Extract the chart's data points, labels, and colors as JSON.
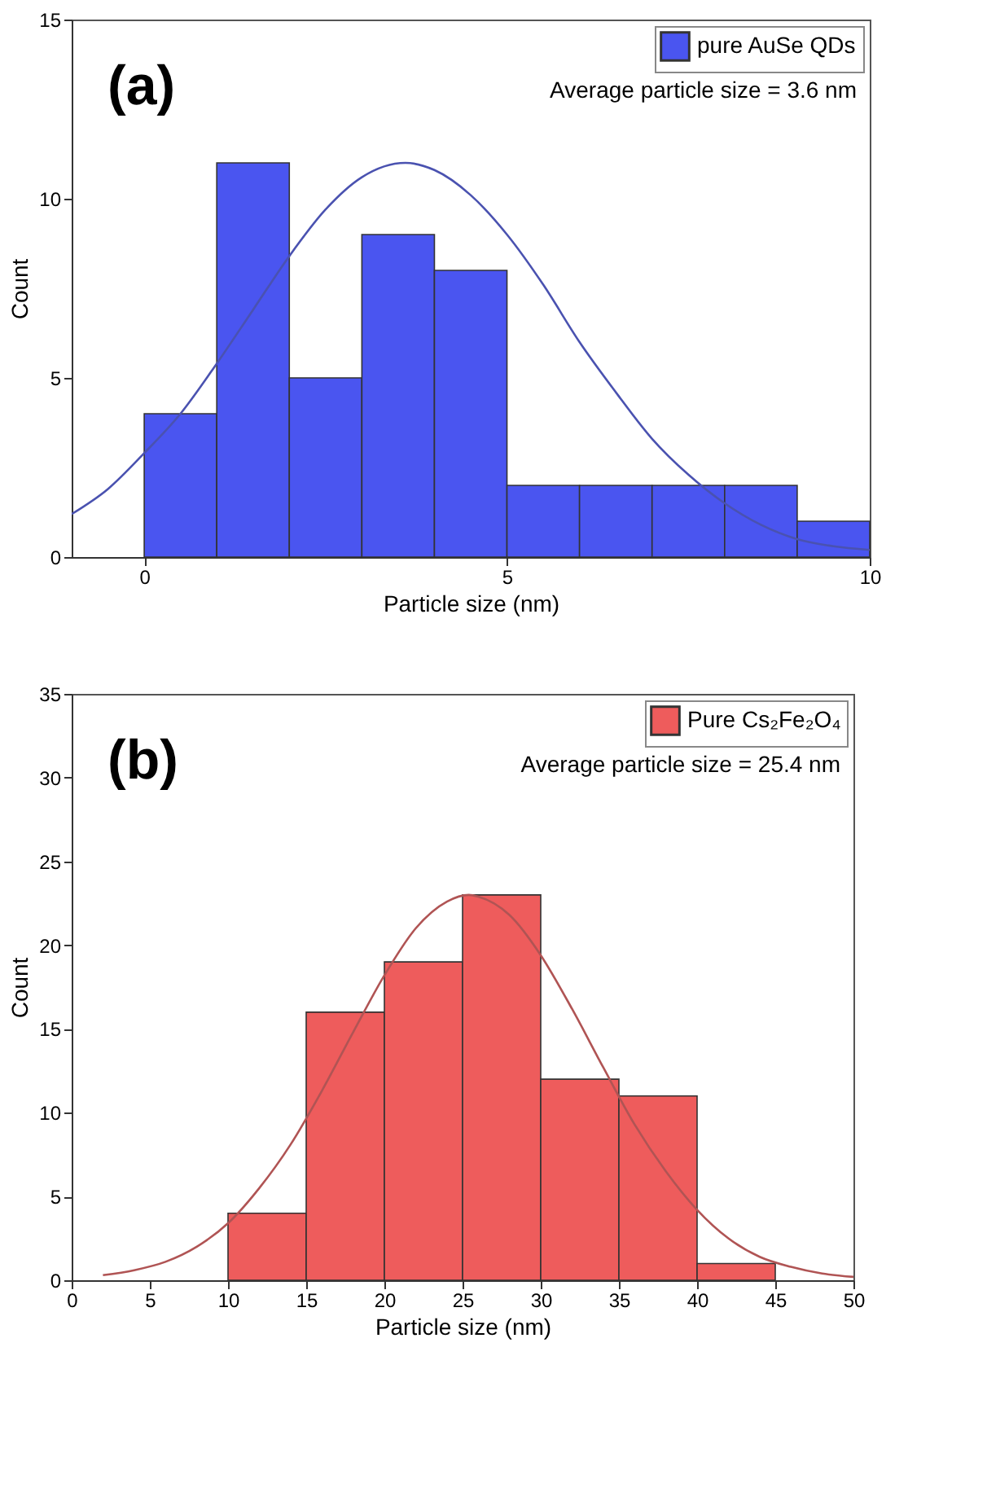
{
  "chart_data": [
    {
      "type": "histogram",
      "xlabel": "Particle size (nm)",
      "ylabel": "Count",
      "annotations": [
        "(a)",
        "Average particle size = 3.6 nm"
      ],
      "bins": [
        0,
        1,
        2,
        3,
        4,
        5,
        6,
        7,
        8,
        9,
        10
      ],
      "xlim": [
        -1,
        10
      ],
      "xticks": [
        0,
        5,
        10
      ],
      "ylim": [
        0,
        15
      ],
      "yticks": [
        0,
        5,
        10,
        15
      ],
      "legend": "top right",
      "series": [
        {
          "name": "pure AuSe QDs",
          "color": "#4a55f0",
          "values": [
            4,
            11,
            5,
            9,
            8,
            2,
            2,
            2,
            2,
            1
          ]
        },
        {
          "type": "line",
          "color": "#4a52b0",
          "x": [
            -1,
            -0.5,
            0,
            0.5,
            1,
            1.5,
            2,
            2.5,
            3,
            3.6,
            4,
            4.5,
            5,
            5.5,
            6,
            6.5,
            7,
            7.5,
            8,
            8.5,
            9,
            9.5,
            10
          ],
          "values": [
            1.2,
            1.9,
            2.9,
            4.0,
            5.4,
            6.9,
            8.4,
            9.7,
            10.6,
            11,
            10.8,
            10.1,
            9.0,
            7.6,
            6.0,
            4.6,
            3.3,
            2.3,
            1.5,
            0.9,
            0.5,
            0.3,
            0.2
          ]
        }
      ]
    },
    {
      "type": "histogram",
      "xlabel": "Particle size (nm)",
      "ylabel": "Count",
      "annotations": [
        "(b)",
        "Average particle size = 25.4 nm"
      ],
      "bins": [
        10,
        15,
        20,
        25,
        30,
        35,
        40,
        45
      ],
      "xlim": [
        0,
        50
      ],
      "xticks": [
        0,
        5,
        10,
        15,
        20,
        25,
        30,
        35,
        40,
        45,
        50
      ],
      "ylim": [
        0,
        35
      ],
      "yticks": [
        0,
        5,
        10,
        15,
        20,
        25,
        30,
        35
      ],
      "legend": "top right",
      "series": [
        {
          "name": "Pure Cs₂Fe₂O₄",
          "color": "#ee5c5c",
          "values": [
            4,
            16,
            19,
            23,
            12,
            11,
            1
          ]
        },
        {
          "type": "line",
          "color": "#b05454",
          "x": [
            2,
            4,
            6,
            8,
            10,
            12,
            14,
            16,
            18,
            20,
            22,
            24,
            25.4,
            26,
            28,
            30,
            32,
            34,
            36,
            38,
            40,
            42,
            44,
            46,
            48,
            50
          ],
          "values": [
            0.3,
            0.6,
            1.1,
            2.0,
            3.4,
            5.5,
            8.1,
            11.3,
            14.8,
            18.2,
            21.0,
            22.6,
            23,
            22.9,
            21.8,
            19.4,
            16.2,
            12.7,
            9.3,
            6.5,
            4.2,
            2.5,
            1.4,
            0.8,
            0.4,
            0.2
          ]
        }
      ]
    }
  ]
}
